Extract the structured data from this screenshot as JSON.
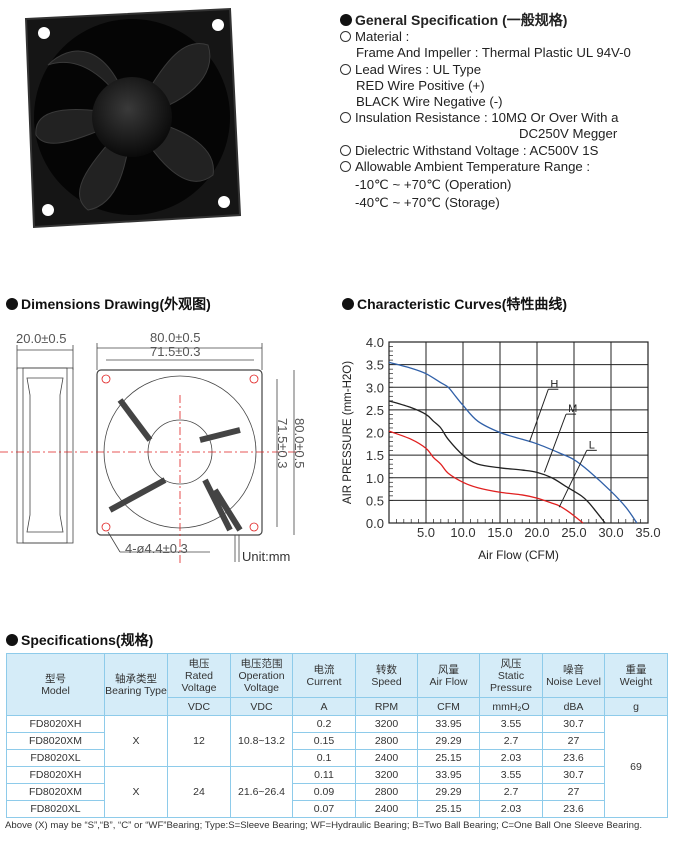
{
  "general": {
    "title": "General Specification",
    "title_cn": "(一般规格)",
    "material_label": "Material :",
    "material_value": "Frame And Impeller : Thermal Plastic UL 94V-0",
    "lead_label": "Lead Wires : UL Type",
    "lead_red": "RED Wire Positive (+)",
    "lead_black": "BLACK Wire Negative (-)",
    "insulation": "Insulation Resistance : 10MΩ Or Over With a",
    "insulation_cont": "DC250V Megger",
    "dielectric": "Dielectric Withstand Voltage : AC500V 1S",
    "ambient": "Allowable Ambient Temperature Range :",
    "operation": "-10℃ ~ +70℃ (Operation)",
    "storage": "-40℃ ~ +70℃ (Storage)"
  },
  "dimensions": {
    "title": "Dimensions Drawing(外观图)",
    "depth": "20.0±0.5",
    "width_outer": "80.0±0.5",
    "width_inner": "71.5±0.3",
    "height_inner": "71.5±0.3",
    "height_outer": "80.0±0.5",
    "holes": "4-ø4.4±0.3",
    "unit": "Unit:mm"
  },
  "curves_title": "Characteristic Curves(特性曲线)",
  "chart_data": {
    "type": "line",
    "xlabel": "Air Flow (CFM)",
    "ylabel": "AIR PRESSURE (mm-H2O)",
    "xlim": [
      0,
      35
    ],
    "ylim": [
      0,
      4.0
    ],
    "xticks": [
      "5.0",
      "10.0",
      "15.0",
      "20.0",
      "25.0",
      "30.0",
      "35.0"
    ],
    "yticks": [
      "0.0",
      "0.5",
      "1.0",
      "1.5",
      "2.0",
      "2.5",
      "3.0",
      "3.5",
      "4.0"
    ],
    "grid": true,
    "series": [
      {
        "name": "H",
        "color": "#3060a8",
        "x": [
          0,
          3,
          5,
          7,
          8,
          9,
          10,
          12,
          15,
          18,
          20,
          23,
          25,
          27,
          30,
          32,
          33.5
        ],
        "y": [
          3.55,
          3.42,
          3.3,
          3.1,
          3.0,
          2.8,
          2.6,
          2.25,
          2.0,
          1.85,
          1.75,
          1.55,
          1.4,
          1.15,
          0.7,
          0.35,
          0
        ]
      },
      {
        "name": "M",
        "color": "#222222",
        "x": [
          0,
          3,
          5,
          6,
          7,
          8,
          10,
          12,
          15,
          18,
          20,
          22,
          24,
          26,
          27,
          28,
          29.2
        ],
        "y": [
          2.7,
          2.55,
          2.4,
          2.25,
          2.1,
          1.85,
          1.5,
          1.3,
          1.22,
          1.17,
          1.12,
          1.0,
          0.8,
          0.6,
          0.45,
          0.25,
          0
        ]
      },
      {
        "name": "L",
        "color": "#e02020",
        "x": [
          0,
          3,
          5,
          6,
          7,
          8,
          10,
          12,
          15,
          18,
          20,
          22,
          23,
          24,
          25,
          26.2
        ],
        "y": [
          2.03,
          1.85,
          1.65,
          1.45,
          1.3,
          1.1,
          0.9,
          0.78,
          0.68,
          0.62,
          0.55,
          0.44,
          0.38,
          0.28,
          0.16,
          0
        ]
      }
    ]
  },
  "specs": {
    "title": "Specifications(规格)",
    "headers": [
      {
        "cn": "型号",
        "en": "Model"
      },
      {
        "cn": "轴承类型",
        "en": "Bearing Type"
      },
      {
        "cn": "电压",
        "en": "Rated Voltage",
        "unit": "VDC"
      },
      {
        "cn": "电压范围",
        "en": "Operation Voltage",
        "unit": "VDC"
      },
      {
        "cn": "电流",
        "en": "Current",
        "unit": "A"
      },
      {
        "cn": "转数",
        "en": "Speed",
        "unit": "RPM"
      },
      {
        "cn": "风量",
        "en": "Air Flow",
        "unit": "CFM"
      },
      {
        "cn": "风压",
        "en": "Static Pressure",
        "unit": "mmH₂O"
      },
      {
        "cn": "噪音",
        "en": "Noise Level",
        "unit": "dBA"
      },
      {
        "cn": "重量",
        "en": "Weight",
        "unit": "g"
      }
    ],
    "groups": [
      {
        "bearing": "X",
        "voltage": "12",
        "range": "10.8~13.2",
        "rows": [
          {
            "model": "FD8020XH",
            "current": "0.2",
            "speed": "3200",
            "flow": "33.95",
            "pressure": "3.55",
            "noise": "30.7"
          },
          {
            "model": "FD8020XM",
            "current": "0.15",
            "speed": "2800",
            "flow": "29.29",
            "pressure": "2.7",
            "noise": "27"
          },
          {
            "model": "FD8020XL",
            "current": "0.1",
            "speed": "2400",
            "flow": "25.15",
            "pressure": "2.03",
            "noise": "23.6"
          }
        ]
      },
      {
        "bearing": "X",
        "voltage": "24",
        "range": "21.6~26.4",
        "rows": [
          {
            "model": "FD8020XH",
            "current": "0.11",
            "speed": "3200",
            "flow": "33.95",
            "pressure": "3.55",
            "noise": "30.7"
          },
          {
            "model": "FD8020XM",
            "current": "0.09",
            "speed": "2800",
            "flow": "29.29",
            "pressure": "2.7",
            "noise": "27"
          },
          {
            "model": "FD8020XL",
            "current": "0.07",
            "speed": "2400",
            "flow": "25.15",
            "pressure": "2.03",
            "noise": "23.6"
          }
        ]
      }
    ],
    "weight": "69",
    "footnote": "Above (X) may be “S”,“B”, “C” or “WF”Bearing;  Type:S=Sleeve  Bearing;   WF=Hydraulic Bearing;   B=Two Ball Bearing;   C=One Ball  One Sleeve  Bearing."
  }
}
